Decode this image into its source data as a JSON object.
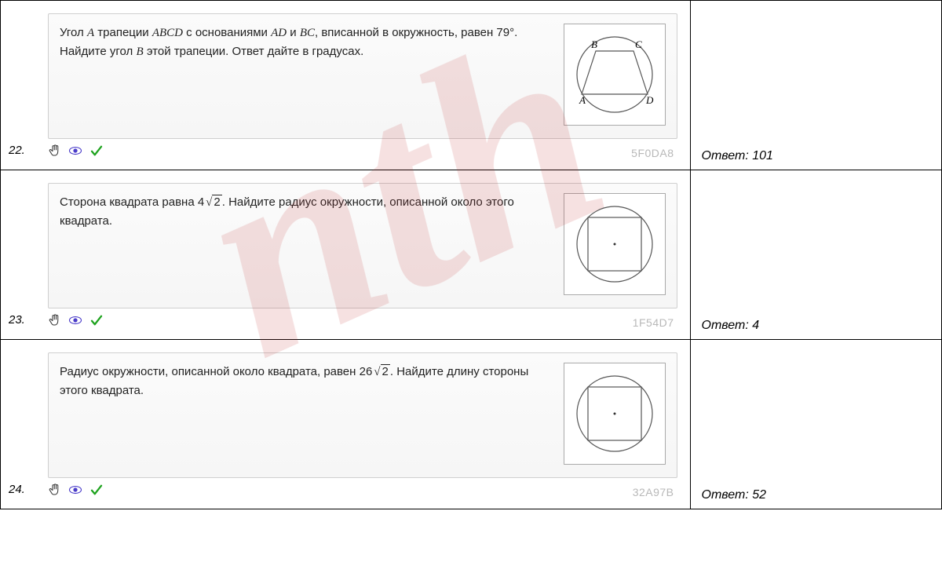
{
  "watermark_text": "nth",
  "rows": [
    {
      "number": "22.",
      "text_html": "Угол <span class='mi'>A</span> трапеции <span class='mi'>ABCD</span> с основаниями <span class='mi'>AD</span> и <span class='mi'>BC</span>, вписанной в окружность, равен 79°. Найдите угол <span class='mi'>B</span> этой трапеции. Ответ дайте в градусах.",
      "code": "5F0DA8",
      "answer": "Ответ: 101",
      "figure": "trapezoid",
      "labels": {
        "A": "A",
        "B": "B",
        "C": "C",
        "D": "D"
      },
      "colors": {
        "stroke": "#555555",
        "fill": "#ffffff"
      }
    },
    {
      "number": "23.",
      "text_html": "Сторона квадрата равна 4<span class='sqrt'><span class='rad'>2</span></span>. Найдите радиус окружности, описанной около этого квадрата.",
      "code": "1F54D7",
      "answer": "Ответ: 4",
      "figure": "square-in-circle",
      "colors": {
        "stroke": "#555555",
        "fill": "#ffffff"
      }
    },
    {
      "number": "24.",
      "text_html": "Радиус окружности, описанной около квадрата, равен 26<span class='sqrt'><span class='rad'>2</span></span>. Найдите длину стороны этого квадрата.",
      "code": "32A97B",
      "answer": "Ответ: 52",
      "figure": "square-in-circle",
      "colors": {
        "stroke": "#555555",
        "fill": "#ffffff"
      }
    }
  ],
  "icons": {
    "hand_color": "#333333",
    "eye_color": "#4a3cc9",
    "check_color": "#1fa31f"
  }
}
